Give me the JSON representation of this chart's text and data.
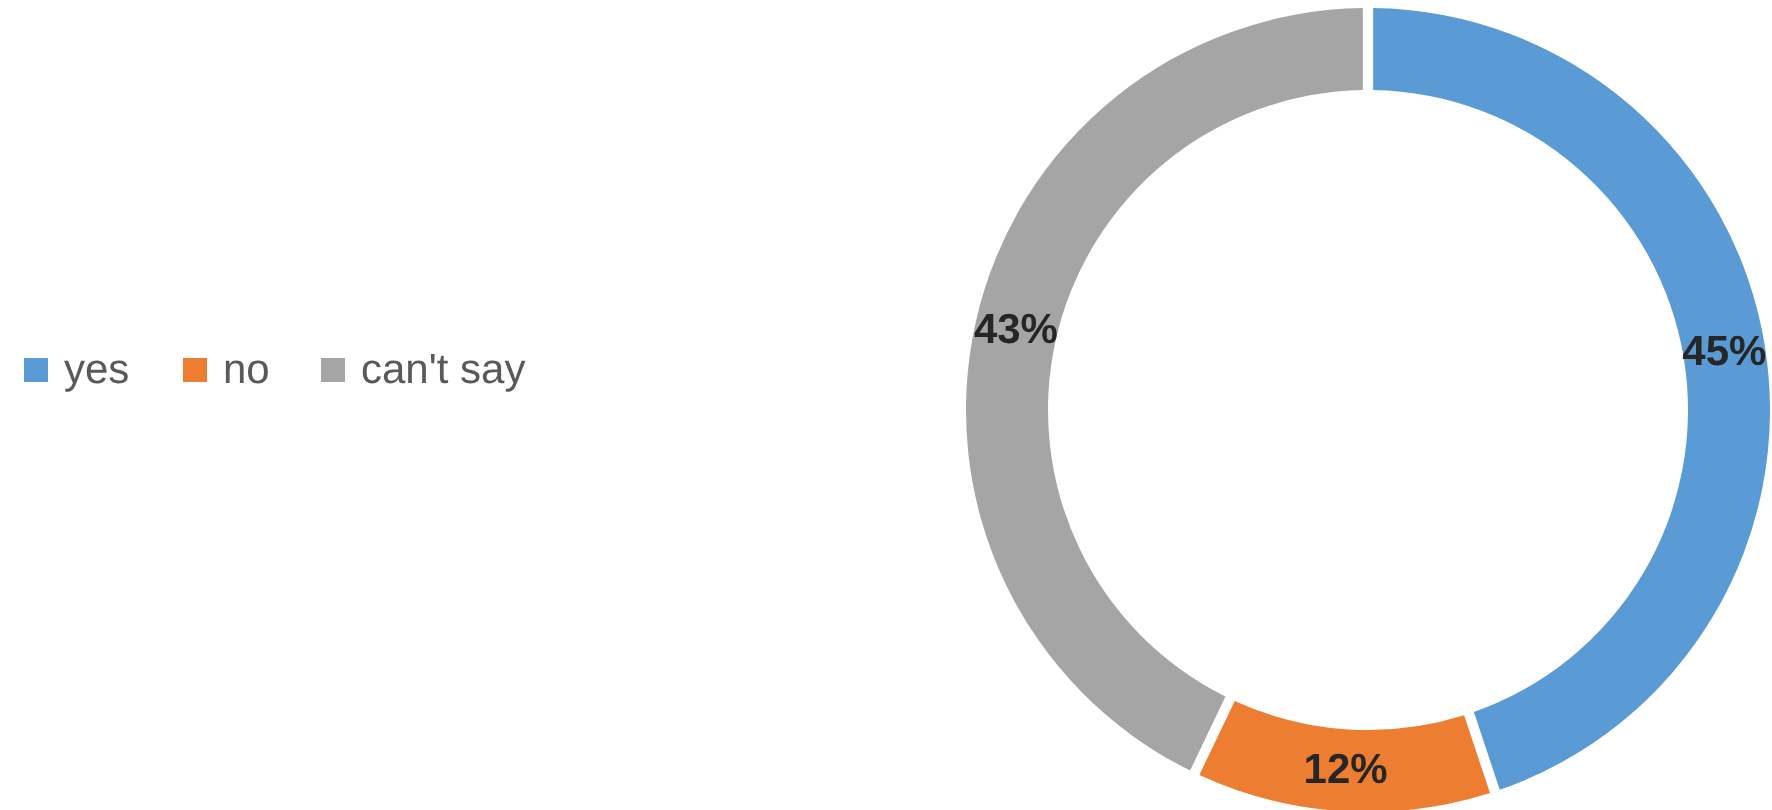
{
  "chart_data": {
    "type": "donut",
    "categories": [
      "yes",
      "no",
      "can't say"
    ],
    "values": [
      45,
      12,
      43
    ],
    "colors": [
      "#5b9bd5",
      "#ed7d31",
      "#a5a5a5"
    ],
    "value_labels": [
      "45%",
      "12%",
      "43%"
    ],
    "legend": "left"
  }
}
